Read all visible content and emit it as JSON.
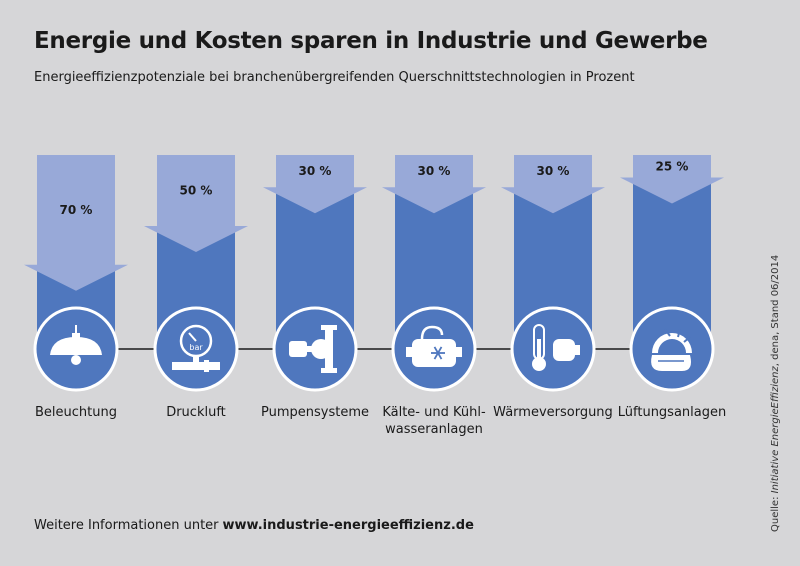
{
  "chart_data": {
    "type": "bar",
    "title": "Energie und Kosten sparen in Industrie und Gewerbe",
    "subtitle": "Energieeffizienzpotenziale bei branchenübergreifenden Querschnittstechnologien in Prozent",
    "categories": [
      "Beleuchtung",
      "Druckluft",
      "Pumpensysteme",
      "Kälte- und Kühlwasseranlagen",
      "Wärmeversorgung",
      "Lüftungsanlagen"
    ],
    "label_lines": [
      [
        "Beleuchtung"
      ],
      [
        "Druckluft"
      ],
      [
        "Pumpensysteme"
      ],
      [
        "Kälte- und Kühl-",
        "wasseranlagen"
      ],
      [
        "Wärmeversorgung"
      ],
      [
        "Lüftungsanlagen"
      ]
    ],
    "values": [
      70,
      50,
      30,
      30,
      30,
      25
    ],
    "value_labels": [
      "70 %",
      "50 %",
      "30 %",
      "30 %",
      "30 %",
      "25 %"
    ],
    "ylim": [
      0,
      100
    ],
    "icons": [
      "lamp-icon",
      "pressure-gauge-icon",
      "pump-icon",
      "cooling-unit-icon",
      "thermometer-heater-icon",
      "fan-icon"
    ],
    "colors": {
      "background": "#d6d6d8",
      "bar": "#4f77be",
      "arrow": "#98a9d8",
      "circle": "#4f77be",
      "circle_stroke": "#ffffff",
      "icon": "#ffffff",
      "line": "#1a1a1a"
    }
  },
  "footer": {
    "text": "Weitere Informationen unter",
    "url": "www.industrie-energieeffizienz.de"
  },
  "source": {
    "prefix": "Quelle: ",
    "italic": "Initiative EnergieEffizienz",
    "suffix": ", dena, Stand 06/2014"
  }
}
